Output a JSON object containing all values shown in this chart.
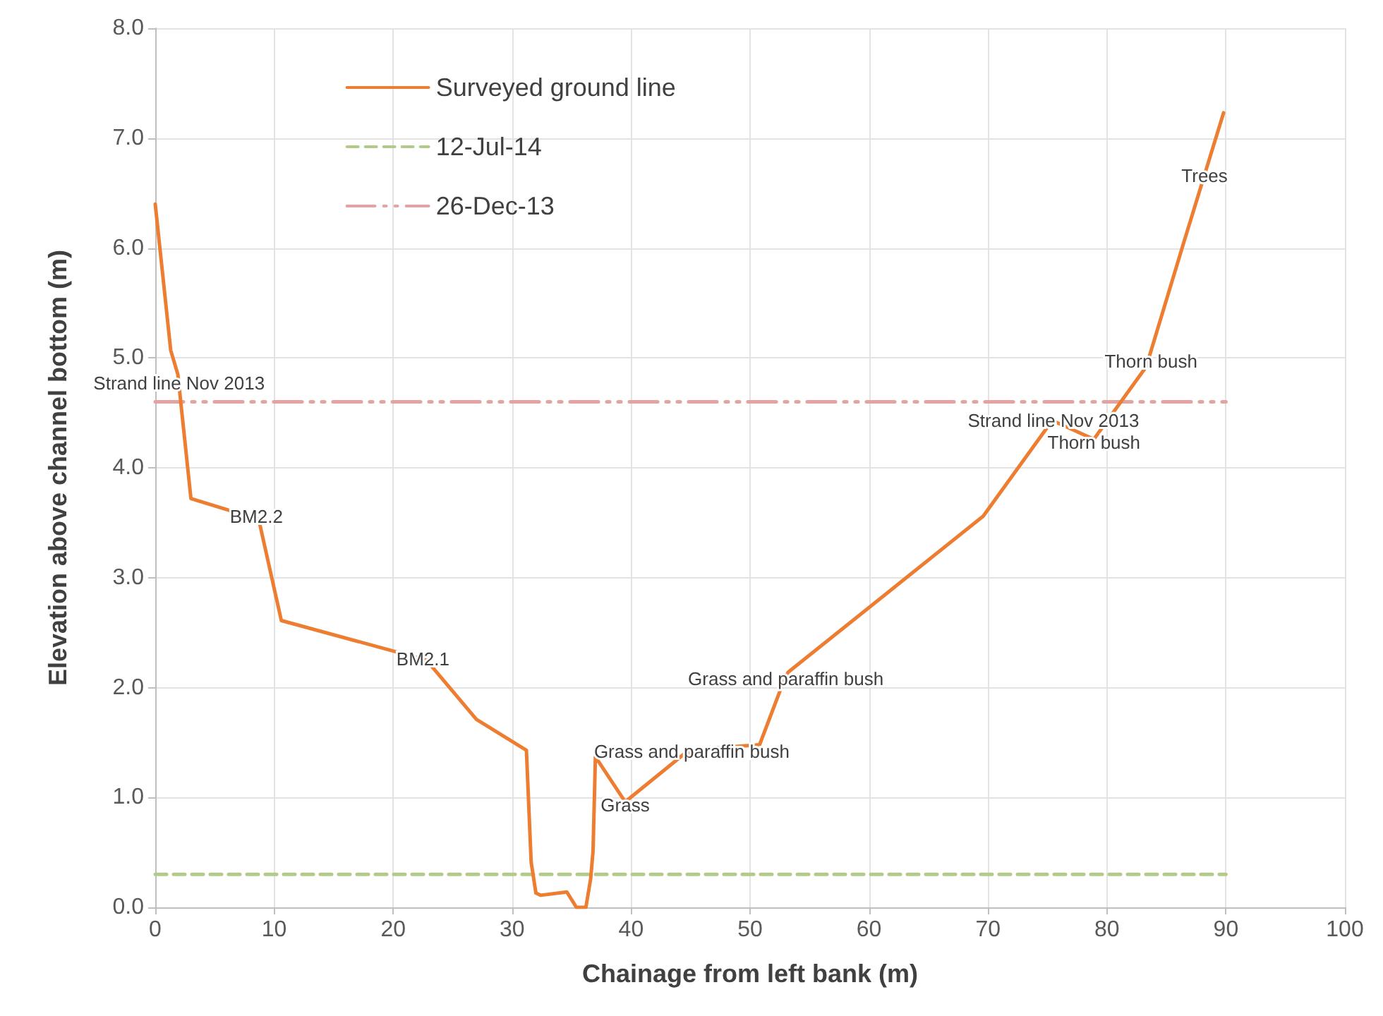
{
  "chart_data": {
    "type": "line",
    "xlabel": "Chainage from left bank (m)",
    "ylabel": "Elevation above channel bottom (m)",
    "series": [
      {
        "name": "Surveyed ground line",
        "color": "#ed7d31",
        "x": [
          0,
          1.3,
          1.9,
          3.0,
          8.7,
          10.6,
          22.8,
          27.0,
          31.2,
          31.6,
          32.0,
          32.4,
          34.6,
          35.4,
          36.2,
          36.6,
          36.8,
          37.0,
          39.5,
          44.5,
          47.0,
          50.8,
          52.8,
          53.2,
          69.6,
          75.4,
          78.9,
          83.3,
          86.4,
          89.8
        ],
        "values": [
          6.4,
          5.07,
          4.85,
          3.72,
          3.53,
          2.61,
          2.25,
          1.71,
          1.43,
          0.41,
          0.13,
          0.11,
          0.14,
          0.0,
          0.0,
          0.26,
          0.51,
          1.37,
          0.96,
          1.4,
          1.45,
          1.48,
          2.05,
          2.14,
          3.56,
          4.43,
          4.26,
          4.92,
          6.03,
          7.23
        ]
      },
      {
        "name": "12-Jul-14",
        "color": "#b3cb8a",
        "x": [
          0,
          90
        ],
        "values": [
          0.3,
          0.3
        ],
        "line_style": "dashed"
      },
      {
        "name": "26-Dec-13",
        "color": "#e4a3a3",
        "x": [
          0,
          90
        ],
        "values": [
          4.6,
          4.6
        ],
        "line_style": "dashdot"
      }
    ],
    "xlim": [
      0,
      100
    ],
    "xticks": [
      0,
      10,
      20,
      30,
      40,
      50,
      60,
      70,
      80,
      90,
      100
    ],
    "ylim": [
      0,
      8
    ],
    "yticks": [
      {
        "value": 0,
        "label": "0.0"
      },
      {
        "value": 1,
        "label": "1.0"
      },
      {
        "value": 2,
        "label": "2.0"
      },
      {
        "value": 3,
        "label": "3.0"
      },
      {
        "value": 4,
        "label": "4.0"
      },
      {
        "value": 5,
        "label": "5.0"
      },
      {
        "value": 6,
        "label": "6.0"
      },
      {
        "value": 7,
        "label": "7.0"
      },
      {
        "value": 8,
        "label": "8.0"
      }
    ],
    "grid": true,
    "legend": "top left",
    "marker": "none",
    "line_style": "solid",
    "annotations": [
      {
        "text": "Strand line Nov 2013",
        "x": 2.0,
        "y": 4.77
      },
      {
        "text": "BM2.2",
        "x": 8.5,
        "y": 3.56
      },
      {
        "text": "BM2.1",
        "x": 22.5,
        "y": 2.26
      },
      {
        "text": "Grass and paraffin bush",
        "x": 45.1,
        "y": 1.42
      },
      {
        "text": "Grass",
        "x": 39.5,
        "y": 0.93
      },
      {
        "text": "Grass and paraffin bush",
        "x": 53.0,
        "y": 2.08
      },
      {
        "text": "Strand line Nov 2013",
        "x": 75.5,
        "y": 4.43
      },
      {
        "text": "Thorn bush",
        "x": 78.9,
        "y": 4.23
      },
      {
        "text": "Thorn bush",
        "x": 83.7,
        "y": 4.97
      },
      {
        "text": "Trees",
        "x": 88.2,
        "y": 6.66
      }
    ]
  }
}
